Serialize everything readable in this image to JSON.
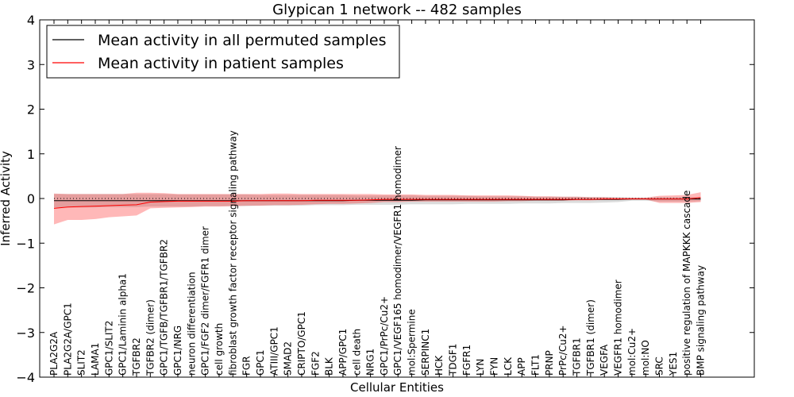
{
  "chart_data": {
    "type": "line",
    "title": "Glypican 1 network -- 482 samples",
    "xlabel": "Cellular Entities",
    "ylabel": "Inferred Activity",
    "ylim": [
      -4,
      4
    ],
    "yticks": [
      -4,
      -3,
      -2,
      -1,
      0,
      1,
      2,
      3,
      4
    ],
    "ytick_labels": [
      "−4",
      "−3",
      "−2",
      "−1",
      "0",
      "1",
      "2",
      "3",
      "4"
    ],
    "categories": [
      "PLA2G2A",
      "PLA2G2A/GPC1",
      "SLIT2",
      "LAMA1",
      "GPC1/SLIT2",
      "GPC1/Laminin alpha1",
      "TGFBR2",
      "TGFBR2 (dimer)",
      "GPC1/TGFB/TGFBR1/TGFBR2",
      "GPC1/NRG",
      "neuron differentiation",
      "GPC1/FGF2 dimer/FGFR1 dimer",
      "cell growth",
      "fibroblast growth factor receptor signaling pathway",
      "FGR",
      "GPC1",
      "ATIII/GPC1",
      "SMAD2",
      "CRIPTO/GPC1",
      "FGF2",
      "BLK",
      "APP/GPC1",
      "cell death",
      "NRG1",
      "GPC1/PrPc/Cu2+",
      "GPC1/VEGF165 homodimer/VEGFR1 homodimer",
      "mol:Spermine",
      "SERPINC1",
      "HCK",
      "TDGF1",
      "FGFR1",
      "LYN",
      "FYN",
      "LCK",
      "APP",
      "FLT1",
      "PRNP",
      "PrPc/Cu2+",
      "TGFBR1",
      "TGFBR1 (dimer)",
      "VEGFA",
      "VEGFR1 homodimer",
      "mol:Cu2+",
      "mol:NO",
      "SRC",
      "YES1",
      "positive regulation of MAPKKK cascade",
      "BMP signaling pathway"
    ],
    "series": [
      {
        "name": "Mean activity in all permuted samples",
        "color": "#000000",
        "values": [
          -0.05,
          -0.05,
          -0.05,
          -0.05,
          -0.05,
          -0.05,
          -0.05,
          -0.05,
          -0.05,
          -0.05,
          -0.05,
          -0.05,
          -0.05,
          -0.05,
          -0.05,
          -0.05,
          -0.05,
          -0.05,
          -0.05,
          -0.05,
          -0.05,
          -0.05,
          -0.04,
          -0.04,
          -0.04,
          -0.04,
          -0.04,
          -0.03,
          -0.03,
          -0.03,
          -0.03,
          -0.03,
          -0.03,
          -0.03,
          -0.03,
          -0.03,
          -0.03,
          -0.03,
          -0.02,
          -0.02,
          -0.02,
          -0.02,
          -0.01,
          -0.01,
          -0.01,
          -0.01,
          -0.01,
          -0.01
        ],
        "band_low": [
          -0.2,
          -0.2,
          -0.2,
          -0.2,
          -0.19,
          -0.19,
          -0.19,
          -0.18,
          -0.18,
          -0.18,
          -0.18,
          -0.17,
          -0.17,
          -0.17,
          -0.17,
          -0.16,
          -0.16,
          -0.16,
          -0.16,
          -0.15,
          -0.15,
          -0.15,
          -0.14,
          -0.14,
          -0.14,
          -0.14,
          -0.13,
          -0.13,
          -0.13,
          -0.13,
          -0.12,
          -0.12,
          -0.12,
          -0.12,
          -0.11,
          -0.11,
          -0.11,
          -0.1,
          -0.1,
          -0.1,
          -0.09,
          -0.08,
          -0.05,
          -0.05,
          -0.07,
          -0.07,
          -0.07,
          -0.06
        ],
        "band_high": [
          0.1,
          0.1,
          0.1,
          0.1,
          0.1,
          0.1,
          0.1,
          0.1,
          0.1,
          0.09,
          0.09,
          0.09,
          0.09,
          0.09,
          0.09,
          0.08,
          0.08,
          0.08,
          0.08,
          0.08,
          0.08,
          0.08,
          0.07,
          0.07,
          0.07,
          0.07,
          0.07,
          0.06,
          0.06,
          0.06,
          0.06,
          0.05,
          0.05,
          0.05,
          0.05,
          0.04,
          0.04,
          0.04,
          0.04,
          0.03,
          0.03,
          0.03,
          0.02,
          0.02,
          0.03,
          0.03,
          0.03,
          0.03
        ]
      },
      {
        "name": "Mean activity in patient samples",
        "color": "#ff0000",
        "values": [
          -0.22,
          -0.19,
          -0.18,
          -0.17,
          -0.16,
          -0.15,
          -0.14,
          -0.08,
          -0.07,
          -0.06,
          -0.06,
          -0.06,
          -0.06,
          -0.06,
          -0.05,
          -0.05,
          -0.05,
          -0.05,
          -0.05,
          -0.04,
          -0.04,
          -0.04,
          -0.04,
          -0.03,
          -0.02,
          -0.02,
          -0.02,
          -0.02,
          -0.02,
          -0.02,
          -0.02,
          -0.02,
          -0.02,
          -0.02,
          -0.02,
          -0.02,
          -0.02,
          -0.02,
          -0.02,
          -0.02,
          -0.01,
          -0.01,
          -0.01,
          -0.01,
          -0.01,
          -0.01,
          -0.01,
          0.02
        ],
        "band_low": [
          -0.58,
          -0.48,
          -0.48,
          -0.46,
          -0.42,
          -0.4,
          -0.38,
          -0.22,
          -0.21,
          -0.2,
          -0.19,
          -0.18,
          -0.18,
          -0.17,
          -0.16,
          -0.16,
          -0.15,
          -0.15,
          -0.14,
          -0.13,
          -0.12,
          -0.12,
          -0.11,
          -0.1,
          -0.08,
          -0.08,
          -0.07,
          -0.07,
          -0.07,
          -0.07,
          -0.07,
          -0.07,
          -0.07,
          -0.06,
          -0.06,
          -0.05,
          -0.05,
          -0.05,
          -0.04,
          -0.04,
          -0.03,
          -0.03,
          -0.02,
          -0.02,
          -0.1,
          -0.1,
          -0.1,
          -0.08
        ],
        "band_high": [
          0.11,
          0.1,
          0.1,
          0.1,
          0.1,
          0.1,
          0.13,
          0.13,
          0.12,
          0.1,
          0.1,
          0.1,
          0.1,
          0.1,
          0.1,
          0.1,
          0.11,
          0.11,
          0.1,
          0.1,
          0.1,
          0.1,
          0.1,
          0.1,
          0.09,
          0.09,
          0.09,
          0.08,
          0.08,
          0.08,
          0.07,
          0.07,
          0.07,
          0.07,
          0.06,
          0.05,
          0.05,
          0.04,
          0.04,
          0.03,
          0.03,
          0.02,
          0.02,
          0.02,
          0.06,
          0.07,
          0.08,
          0.14
        ]
      }
    ],
    "reference_line": 0,
    "legend_position": "top-left",
    "grid": false
  }
}
